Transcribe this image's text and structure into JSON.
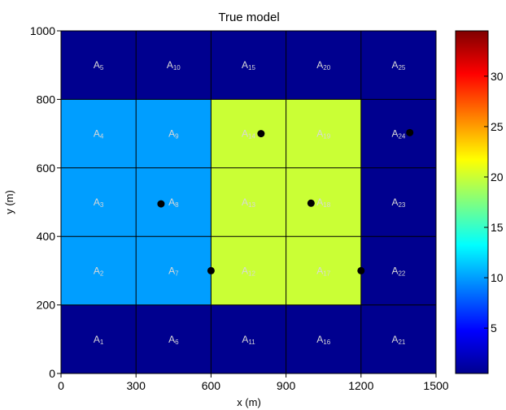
{
  "chart_data": {
    "type": "heatmap",
    "title": "True model",
    "xlabel": "x (m)",
    "ylabel": "y (m)",
    "xlim": [
      0,
      1500
    ],
    "ylim": [
      0,
      1000
    ],
    "xticks": [
      0,
      300,
      600,
      900,
      1200,
      1500
    ],
    "yticks": [
      0,
      200,
      400,
      600,
      800,
      1000
    ],
    "grid": true,
    "cells": [
      {
        "label": "A",
        "sub": "1",
        "x": [
          0,
          300
        ],
        "y": [
          0,
          200
        ],
        "value": 1
      },
      {
        "label": "A",
        "sub": "2",
        "x": [
          0,
          300
        ],
        "y": [
          200,
          400
        ],
        "value": 10
      },
      {
        "label": "A",
        "sub": "3",
        "x": [
          0,
          300
        ],
        "y": [
          400,
          600
        ],
        "value": 10
      },
      {
        "label": "A",
        "sub": "4",
        "x": [
          0,
          300
        ],
        "y": [
          600,
          800
        ],
        "value": 10
      },
      {
        "label": "A",
        "sub": "5",
        "x": [
          0,
          300
        ],
        "y": [
          800,
          1000
        ],
        "value": 1
      },
      {
        "label": "A",
        "sub": "6",
        "x": [
          300,
          600
        ],
        "y": [
          0,
          200
        ],
        "value": 1
      },
      {
        "label": "A",
        "sub": "7",
        "x": [
          300,
          600
        ],
        "y": [
          200,
          400
        ],
        "value": 10
      },
      {
        "label": "A",
        "sub": "8",
        "x": [
          300,
          600
        ],
        "y": [
          400,
          600
        ],
        "value": 10
      },
      {
        "label": "A",
        "sub": "9",
        "x": [
          300,
          600
        ],
        "y": [
          600,
          800
        ],
        "value": 10
      },
      {
        "label": "A",
        "sub": "10",
        "x": [
          300,
          600
        ],
        "y": [
          800,
          1000
        ],
        "value": 1
      },
      {
        "label": "A",
        "sub": "11",
        "x": [
          600,
          900
        ],
        "y": [
          0,
          200
        ],
        "value": 1
      },
      {
        "label": "A",
        "sub": "12",
        "x": [
          600,
          900
        ],
        "y": [
          200,
          400
        ],
        "value": 20
      },
      {
        "label": "A",
        "sub": "13",
        "x": [
          600,
          900
        ],
        "y": [
          400,
          600
        ],
        "value": 20
      },
      {
        "label": "A",
        "sub": "14",
        "x": [
          600,
          900
        ],
        "y": [
          600,
          800
        ],
        "value": 20
      },
      {
        "label": "A",
        "sub": "15",
        "x": [
          600,
          900
        ],
        "y": [
          800,
          1000
        ],
        "value": 1
      },
      {
        "label": "A",
        "sub": "16",
        "x": [
          900,
          1200
        ],
        "y": [
          0,
          200
        ],
        "value": 1
      },
      {
        "label": "A",
        "sub": "17",
        "x": [
          900,
          1200
        ],
        "y": [
          200,
          400
        ],
        "value": 20
      },
      {
        "label": "A",
        "sub": "18",
        "x": [
          900,
          1200
        ],
        "y": [
          400,
          600
        ],
        "value": 20
      },
      {
        "label": "A",
        "sub": "19",
        "x": [
          900,
          1200
        ],
        "y": [
          600,
          800
        ],
        "value": 20
      },
      {
        "label": "A",
        "sub": "20",
        "x": [
          900,
          1200
        ],
        "y": [
          800,
          1000
        ],
        "value": 1
      },
      {
        "label": "A",
        "sub": "21",
        "x": [
          1200,
          1500
        ],
        "y": [
          0,
          200
        ],
        "value": 1
      },
      {
        "label": "A",
        "sub": "22",
        "x": [
          1200,
          1500
        ],
        "y": [
          200,
          400
        ],
        "value": 1
      },
      {
        "label": "A",
        "sub": "23",
        "x": [
          1200,
          1500
        ],
        "y": [
          400,
          600
        ],
        "value": 1
      },
      {
        "label": "A",
        "sub": "24",
        "x": [
          1200,
          1500
        ],
        "y": [
          600,
          800
        ],
        "value": 1
      },
      {
        "label": "A",
        "sub": "25",
        "x": [
          1200,
          1500
        ],
        "y": [
          800,
          1000
        ],
        "value": 1
      }
    ],
    "points": [
      {
        "x": 400,
        "y": 495
      },
      {
        "x": 600,
        "y": 300
      },
      {
        "x": 800,
        "y": 700
      },
      {
        "x": 1000,
        "y": 497
      },
      {
        "x": 1200,
        "y": 300
      },
      {
        "x": 1395,
        "y": 703
      }
    ],
    "colorbar": {
      "range": [
        0.5,
        34.5
      ],
      "ticks": [
        5,
        10,
        15,
        20,
        25,
        30
      ],
      "colormap": "jet"
    }
  }
}
